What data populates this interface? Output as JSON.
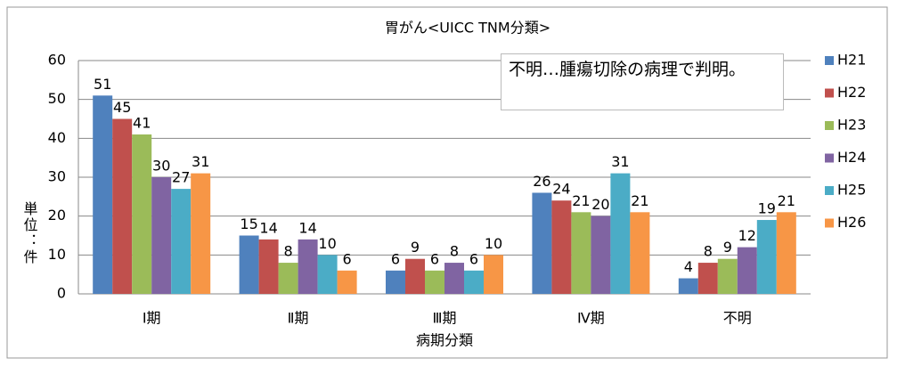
{
  "chart_data": {
    "type": "bar",
    "title": "胃がん<UICC TNM分類>",
    "x_label": "病期分類",
    "y_label": "単位：件",
    "annotation": "不明…腫瘍切除の病理で判明。",
    "categories": [
      "Ⅰ期",
      "Ⅱ期",
      "Ⅲ期",
      "Ⅳ期",
      "不明"
    ],
    "series": [
      {
        "name": "H21",
        "color": "#4f81bd",
        "values": [
          51,
          15,
          6,
          26,
          4
        ]
      },
      {
        "name": "H22",
        "color": "#c0504d",
        "values": [
          45,
          14,
          9,
          24,
          8
        ]
      },
      {
        "name": "H23",
        "color": "#9bbb59",
        "values": [
          41,
          8,
          6,
          21,
          9
        ]
      },
      {
        "name": "H24",
        "color": "#8064a2",
        "values": [
          30,
          14,
          8,
          20,
          12
        ]
      },
      {
        "name": "H25",
        "color": "#4bacc6",
        "values": [
          27,
          10,
          6,
          31,
          19
        ]
      },
      {
        "name": "H26",
        "color": "#f79646",
        "values": [
          31,
          6,
          10,
          21,
          21
        ]
      }
    ],
    "ylim": [
      0,
      60
    ],
    "yticks": [
      0,
      10,
      20,
      30,
      40,
      50,
      60
    ],
    "grid": true,
    "legend": "right"
  }
}
